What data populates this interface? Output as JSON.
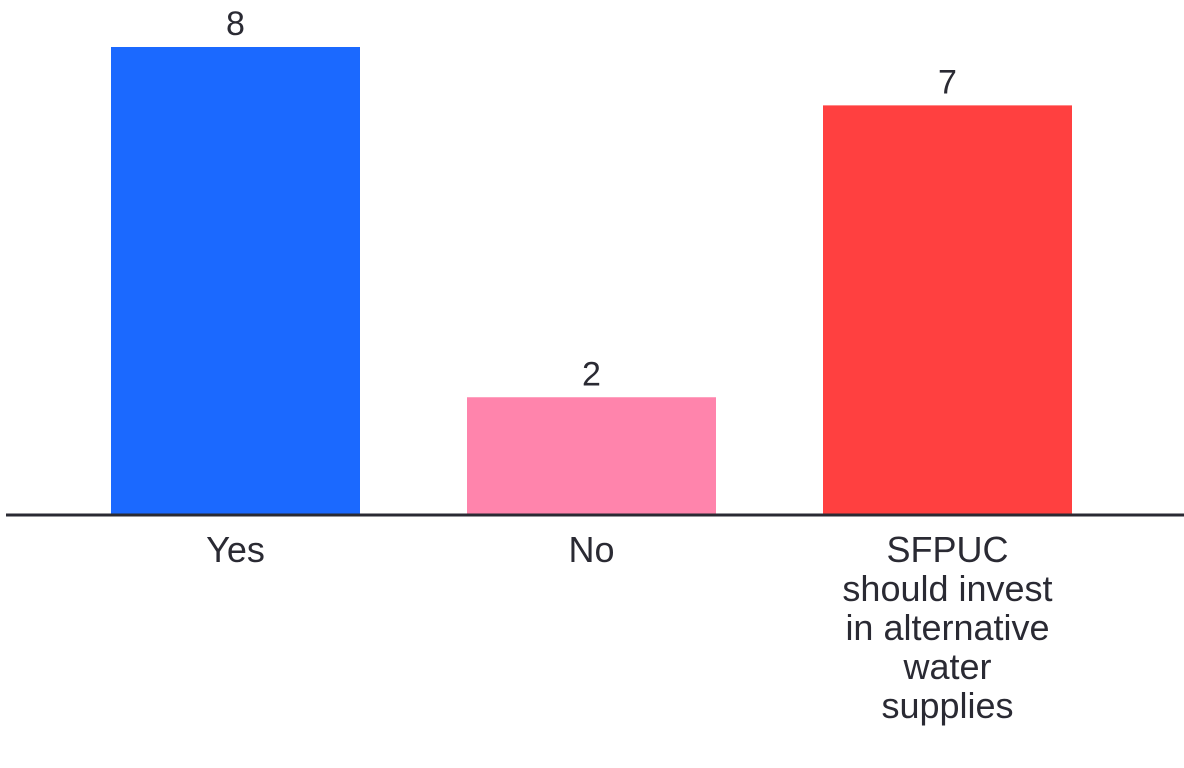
{
  "chart_data": {
    "type": "bar",
    "categories": [
      "Yes",
      "No",
      "SFPUC should invest in alternative water supplies"
    ],
    "category_lines": [
      [
        "Yes"
      ],
      [
        "No"
      ],
      [
        "SFPUC",
        "should invest",
        "in alternative",
        "water",
        "supplies"
      ]
    ],
    "values": [
      8,
      2,
      7
    ],
    "colors": [
      "#1b69ff",
      "#ff84ac",
      "#ff4040"
    ],
    "ylim": [
      0,
      8
    ],
    "grid": false,
    "legend": "none",
    "data_labels": true
  }
}
